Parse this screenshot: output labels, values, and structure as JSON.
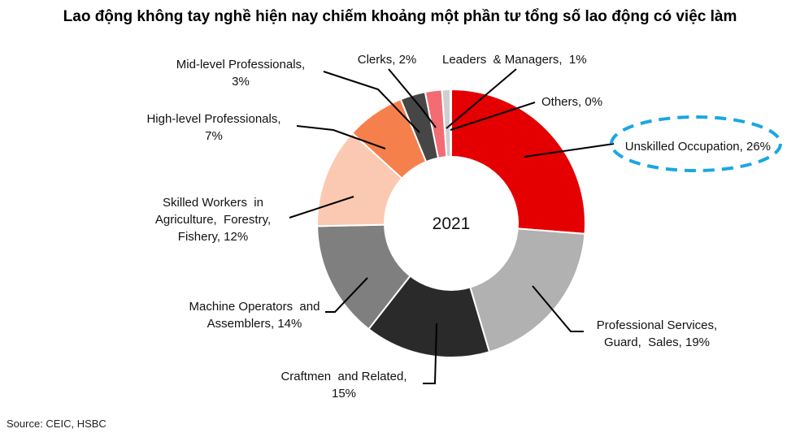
{
  "chart_data": {
    "type": "pie",
    "variant": "donut",
    "title": "Lao động không tay nghề hiện nay chiếm khoảng một phần tư tổng số lao động có việc làm",
    "center_label": "2021",
    "source": "Source: CEIC, HSBC",
    "slices": [
      {
        "name": "Unskilled Occupation",
        "value": 26,
        "color": "#e40000",
        "label_lines": [
          "Unskilled Occupation, 26%"
        ],
        "highlighted": true
      },
      {
        "name": "Professional Services, Guard, Sales",
        "value": 19,
        "color": "#b1b1b1",
        "label_lines": [
          "Professional Services,",
          "Guard,  Sales, 19%"
        ]
      },
      {
        "name": "Craftmen and Related",
        "value": 15,
        "color": "#2a2a2a",
        "label_lines": [
          "Craftmen  and Related,",
          "15%"
        ]
      },
      {
        "name": "Machine Operators and Assemblers",
        "value": 14,
        "color": "#7f7f7f",
        "label_lines": [
          "Machine Operators  and",
          "Assemblers, 14%"
        ]
      },
      {
        "name": "Skilled Workers in Agriculture, Forestry, Fishery",
        "value": 12,
        "color": "#fbc9b1",
        "label_lines": [
          "Skilled Workers  in",
          "Agriculture,  Forestry,",
          "Fishery, 12%"
        ]
      },
      {
        "name": "High-level Professionals",
        "value": 7,
        "color": "#f6804b",
        "label_lines": [
          "High-level Professionals,",
          "7%"
        ]
      },
      {
        "name": "Mid-level Professionals",
        "value": 3,
        "color": "#464646",
        "label_lines": [
          "Mid-level Professionals,",
          "3%"
        ]
      },
      {
        "name": "Clerks",
        "value": 2,
        "color": "#f36b73",
        "label_lines": [
          "Clerks, 2%"
        ]
      },
      {
        "name": "Leaders & Managers",
        "value": 1,
        "color": "#cfcfcf",
        "label_lines": [
          "Leaders  & Managers,  1%"
        ]
      },
      {
        "name": "Others",
        "value": 0,
        "color": "#9a9a9a",
        "label_lines": [
          "Others, 0%"
        ]
      }
    ],
    "highlight_color": "#1aa7e0"
  }
}
